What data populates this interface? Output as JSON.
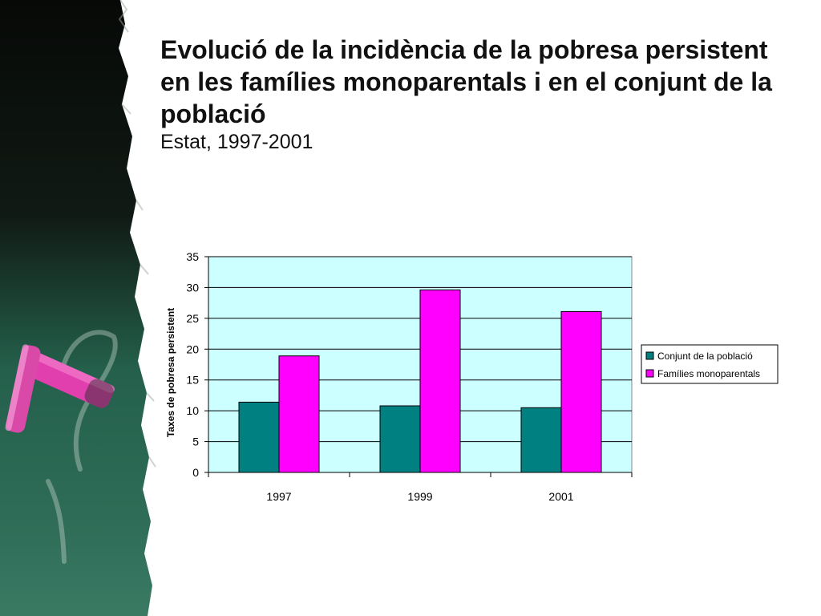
{
  "slide": {
    "title": "Evolució de la incidència de la pobresa persistent en les famílies monoparentals i en el conjunt de la població",
    "subtitle": "Estat, 1997-2001"
  },
  "chart_data": {
    "type": "bar",
    "categories": [
      "1997",
      "1999",
      "2001"
    ],
    "series": [
      {
        "name": "Conjunt de la població",
        "values": [
          11.4,
          10.8,
          10.5
        ],
        "color": "#008080"
      },
      {
        "name": "Famílies monoparentals",
        "values": [
          18.9,
          29.6,
          26.1
        ],
        "color": "#ff00ff"
      }
    ],
    "title": "",
    "xlabel": "",
    "ylabel": "Taxes de pobresa persistent",
    "ylim": [
      0,
      35
    ],
    "yticks": [
      0,
      5,
      10,
      15,
      20,
      25,
      30,
      35
    ],
    "grid": true,
    "legend": "right",
    "plot_background": "#ccffff"
  },
  "colors": {
    "chalkboard_dark": "#101510",
    "chalkboard_green": "#2e6e58",
    "chalk_pink": "#e23fae"
  }
}
